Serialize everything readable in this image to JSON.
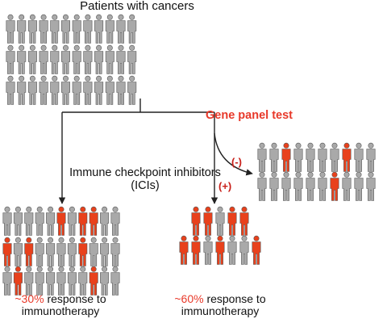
{
  "title": "Patients with cancers",
  "branch_left_label": "Immune checkpoint inhibitors (ICIs)",
  "branch_right_label": "Gene panel test",
  "sign_negative": "(-)",
  "sign_positive": "(+)",
  "left_result": {
    "percent": "~30%",
    "text": " response to immunotherapy"
  },
  "right_result": {
    "percent": "~60%",
    "text": " response to immunotherapy"
  },
  "colors": {
    "gray": "#a9a9a9",
    "red": "#e8411c",
    "accent_text": "#e8392a",
    "line": "#222222"
  },
  "groups": {
    "all_patients": {
      "rows": [
        [
          0,
          0,
          0,
          0,
          0,
          0,
          0,
          0,
          0,
          0,
          0,
          0
        ],
        [
          0,
          0,
          0,
          0,
          0,
          0,
          0,
          0,
          0,
          0,
          0,
          0
        ],
        [
          0,
          0,
          0,
          0,
          0,
          0,
          0,
          0,
          0,
          0,
          0,
          0
        ]
      ]
    },
    "ici_treated": {
      "rows": [
        [
          0,
          0,
          0,
          0,
          0,
          1,
          0,
          1,
          1,
          0,
          0
        ],
        [
          1,
          0,
          1,
          0,
          0,
          0,
          0,
          1,
          0,
          0,
          0
        ],
        [
          0,
          1,
          0,
          0,
          0,
          0,
          0,
          0,
          1,
          0,
          0
        ]
      ]
    },
    "panel_negative": {
      "rows": [
        [
          0,
          0,
          1,
          0,
          0,
          0,
          0,
          1,
          0,
          0
        ],
        [
          0,
          0,
          0,
          0,
          0,
          0,
          1,
          0,
          0,
          0
        ]
      ]
    },
    "panel_positive": {
      "rows": [
        [
          1,
          1,
          0,
          1,
          1
        ],
        [
          1,
          1,
          0,
          1,
          0,
          0,
          1
        ]
      ]
    }
  }
}
